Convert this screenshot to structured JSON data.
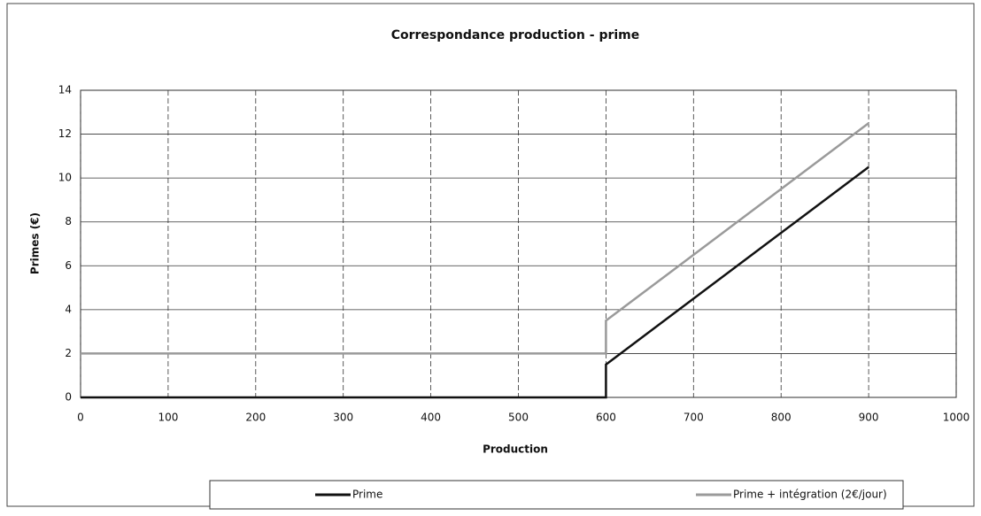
{
  "chart_data": {
    "type": "line",
    "title": "Correspondance production - prime",
    "x_label": "Production",
    "y_label": "Primes (€)",
    "series": [
      {
        "name": "Prime",
        "color": "#111111",
        "x": [
          0,
          600,
          600,
          900
        ],
        "values": [
          0,
          0,
          1.5,
          10.5
        ]
      },
      {
        "name": "Prime + intégration (2€/jour)",
        "color": "#9a9a9a",
        "x": [
          0,
          600,
          600,
          900
        ],
        "values": [
          2,
          2,
          3.5,
          12.5
        ]
      }
    ],
    "xlim": [
      0,
      1000
    ],
    "xticks": [
      0,
      100,
      200,
      300,
      400,
      500,
      600,
      700,
      800,
      900,
      1000
    ],
    "ylim": [
      0,
      14
    ],
    "yticks": [
      0,
      2,
      4,
      6,
      8,
      10,
      12,
      14
    ],
    "grid": true,
    "legend": "bottom"
  }
}
